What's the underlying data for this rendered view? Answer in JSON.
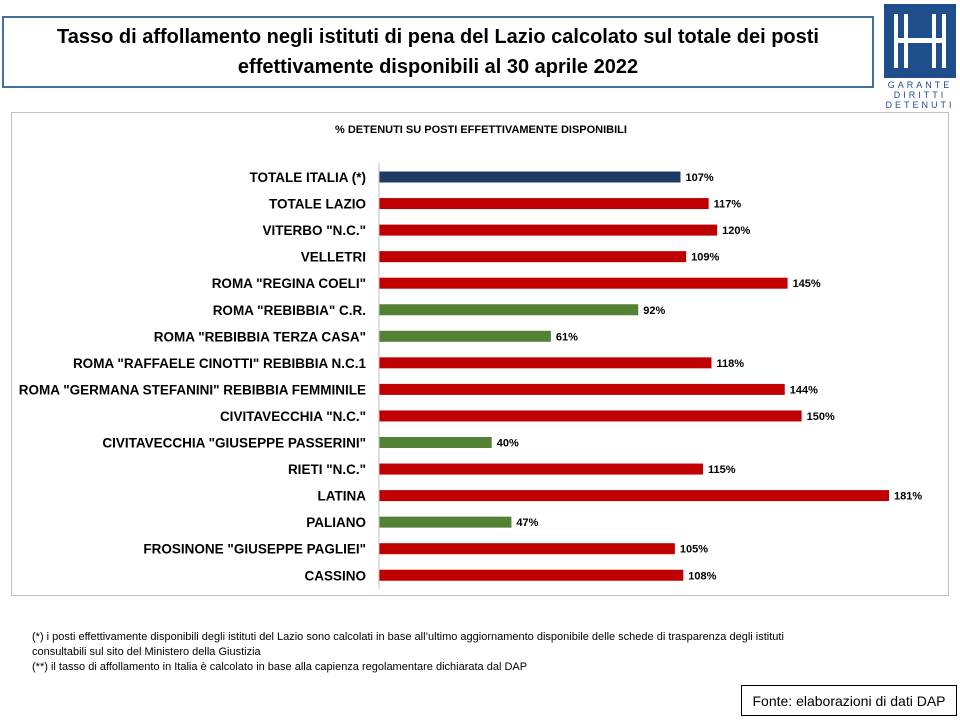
{
  "header": {
    "title_line1": "Tasso di affollamento negli istituti di pena del Lazio calcolato sul totale dei posti",
    "title_line2": "effettivamente disponibili al 30 aprile 2022"
  },
  "logo": {
    "text_lines": [
      "GARANTE",
      "DIRITTI",
      "DETENUTI"
    ],
    "background": "#1f4e8c"
  },
  "colors": {
    "national": "#1f3864",
    "over_capacity": "#c00000",
    "under_capacity": "#548235"
  },
  "chart_data": {
    "type": "bar",
    "orientation": "horizontal",
    "title": "% DETENUTI SU POSTI EFFETTIVAMENTE DISPONIBILI",
    "categories": [
      "TOTALE ITALIA (*)",
      "TOTALE LAZIO",
      "VITERBO \"N.C.\"",
      "VELLETRI",
      "ROMA \"REGINA COELI\"",
      "ROMA \"REBIBBIA\" C.R.",
      "ROMA \"REBIBBIA TERZA CASA\"",
      "ROMA \"RAFFAELE CINOTTI\" REBIBBIA N.C.1",
      "ROMA \"GERMANA STEFANINI\" REBIBBIA FEMMINILE",
      "CIVITAVECCHIA \"N.C.\"",
      "CIVITAVECCHIA \"GIUSEPPE PASSERINI\"",
      "RIETI \"N.C.\"",
      "LATINA",
      "PALIANO",
      "FROSINONE \"GIUSEPPE PAGLIEI\"",
      "CASSINO"
    ],
    "values": [
      107,
      117,
      120,
      109,
      145,
      92,
      61,
      118,
      144,
      150,
      40,
      115,
      181,
      47,
      105,
      108
    ],
    "value_labels": [
      "107%",
      "117%",
      "120%",
      "109%",
      "145%",
      "92%",
      "61%",
      "118%",
      "144%",
      "150%",
      "40%",
      "115%",
      "181%",
      "47%",
      "105%",
      "108%"
    ],
    "bar_colors": [
      "#1f3864",
      "#c00000",
      "#c00000",
      "#c00000",
      "#c00000",
      "#548235",
      "#548235",
      "#c00000",
      "#c00000",
      "#c00000",
      "#548235",
      "#c00000",
      "#c00000",
      "#548235",
      "#c00000",
      "#c00000"
    ],
    "xlim": [
      0,
      181
    ],
    "grid": false,
    "legend": "none"
  },
  "footnotes": [
    "(*) i posti effettivamente disponibili  degli istituti del Lazio sono  calcolati in base all’ultimo aggiornamento disponibile  delle schede  di trasparenza degli istituti",
    "consultabili sul sito del Ministero della Giustizia",
    "(**) il tasso di affollamento  in Italia è calcolato in base alla capienza regolamentare dichiarata dal DAP"
  ],
  "source": "Fonte: elaborazioni di dati DAP"
}
